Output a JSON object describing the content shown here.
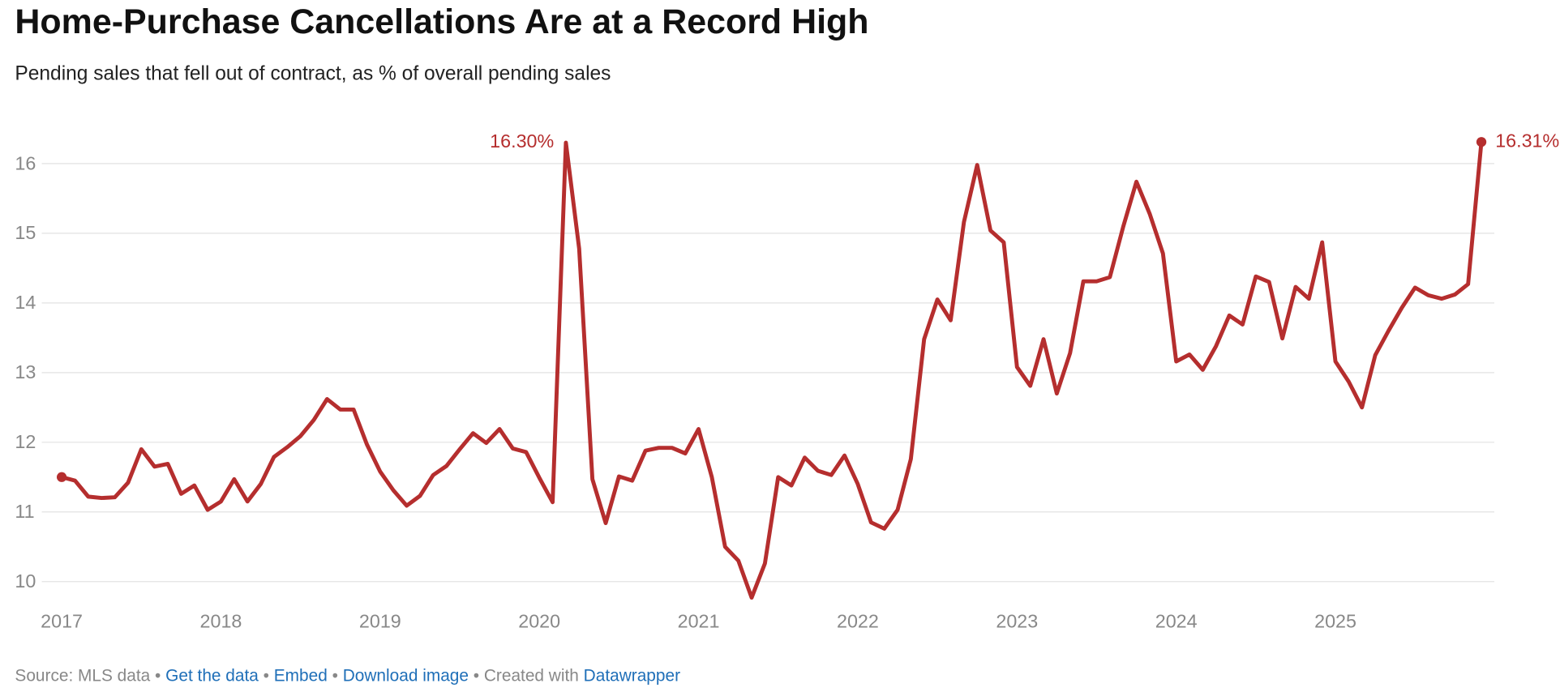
{
  "chart_data": {
    "type": "line",
    "title": "Home-Purchase Cancellations Are at a Record High",
    "subtitle": "Pending sales that fell out of contract, as % of overall pending sales",
    "x": [
      2017,
      2017.0833,
      2017.1667,
      2017.25,
      2017.3333,
      2017.4167,
      2017.5,
      2017.5833,
      2017.6667,
      2017.75,
      2017.8333,
      2017.9167,
      2018,
      2018.0833,
      2018.1667,
      2018.25,
      2018.3333,
      2018.4167,
      2018.5,
      2018.5833,
      2018.6667,
      2018.75,
      2018.8333,
      2018.9167,
      2019,
      2019.0833,
      2019.1667,
      2019.25,
      2019.3333,
      2019.4167,
      2019.5,
      2019.5833,
      2019.6667,
      2019.75,
      2019.8333,
      2019.9167,
      2020,
      2020.0833,
      2020.1667,
      2020.25,
      2020.3333,
      2020.4167,
      2020.5,
      2020.5833,
      2020.6667,
      2020.75,
      2020.8333,
      2020.9167,
      2021,
      2021.0833,
      2021.1667,
      2021.25,
      2021.3333,
      2021.4167,
      2021.5,
      2021.5833,
      2021.6667,
      2021.75,
      2021.8333,
      2021.9167,
      2022,
      2022.0833,
      2022.1667,
      2022.25,
      2022.3333,
      2022.4167,
      2022.5,
      2022.5833,
      2022.6667,
      2022.75,
      2022.8333,
      2022.9167,
      2023,
      2023.0833,
      2023.1667,
      2023.25,
      2023.3333,
      2023.4167,
      2023.5,
      2023.5833,
      2023.6667,
      2023.75,
      2023.8333,
      2023.9167,
      2024,
      2024.0833,
      2024.1667,
      2024.25,
      2024.3333,
      2024.4167,
      2024.5,
      2024.5833,
      2024.6667,
      2024.75,
      2024.8333,
      2024.9167,
      2025,
      2025.0833,
      2025.1667,
      2025.25,
      2025.3333,
      2025.4167,
      2025.5,
      2025.5833,
      2025.6667,
      2025.75,
      2025.8333,
      2025.9167
    ],
    "series": [
      {
        "color": "#b52e2e",
        "values": [
          11.5,
          11.45,
          11.22,
          11.2,
          11.21,
          11.42,
          11.9,
          11.65,
          11.69,
          11.26,
          11.38,
          11.03,
          11.15,
          11.47,
          11.15,
          11.4,
          11.79,
          11.93,
          12.09,
          12.32,
          12.62,
          12.47,
          12.47,
          11.97,
          11.58,
          11.31,
          11.09,
          11.23,
          11.53,
          11.66,
          11.9,
          12.13,
          11.99,
          12.19,
          11.91,
          11.86,
          11.49,
          11.14,
          16.3,
          14.78,
          11.47,
          10.84,
          11.51,
          11.45,
          11.88,
          11.92,
          11.92,
          11.84,
          12.19,
          11.5,
          10.5,
          10.3,
          9.77,
          10.26,
          11.5,
          11.38,
          11.78,
          11.59,
          11.53,
          11.81,
          11.4,
          10.85,
          10.76,
          11.03,
          11.76,
          13.48,
          14.05,
          13.75,
          15.16,
          15.98,
          15.04,
          14.87,
          13.08,
          12.81,
          13.48,
          12.7,
          13.28,
          14.31,
          14.31,
          14.37,
          15.09,
          15.74,
          15.28,
          14.71,
          13.16,
          13.26,
          13.04,
          13.38,
          13.82,
          13.69,
          14.38,
          14.3,
          13.49,
          14.23,
          14.06,
          14.87,
          13.16,
          12.87,
          12.5,
          13.25,
          13.6,
          13.93,
          14.22,
          14.11,
          14.06,
          14.12,
          14.27,
          16.31
        ],
        "value_labels": [
          null,
          null,
          null,
          null,
          null,
          null,
          null,
          null,
          null,
          null,
          null,
          null,
          null,
          null,
          null,
          null,
          null,
          null,
          null,
          null,
          null,
          null,
          null,
          null,
          null,
          null,
          null,
          null,
          null,
          null,
          null,
          null,
          null,
          null,
          null,
          null,
          null,
          null,
          "16.30%",
          null,
          null,
          null,
          null,
          null,
          null,
          null,
          null,
          null,
          null,
          null,
          null,
          null,
          null,
          null,
          null,
          null,
          null,
          null,
          null,
          null,
          null,
          null,
          null,
          null,
          null,
          null,
          null,
          null,
          null,
          null,
          null,
          null,
          null,
          null,
          null,
          null,
          null,
          null,
          null,
          null,
          null,
          null,
          null,
          null,
          null,
          null,
          null,
          null,
          null,
          null,
          null,
          null,
          null,
          null,
          null,
          null,
          null,
          null,
          null,
          null,
          null,
          null,
          null,
          null,
          null,
          null,
          null,
          "16.31%"
        ]
      }
    ],
    "xlim": [
      2017,
      2025.9167
    ],
    "xticks": [
      2017,
      2018,
      2019,
      2020,
      2021,
      2022,
      2023,
      2024,
      2025
    ],
    "ylim": [
      9.7,
      16.35
    ],
    "yticks": [
      10,
      11,
      12,
      13,
      14,
      15,
      16
    ],
    "grid": true
  },
  "footer": {
    "source": "Source: MLS data",
    "get_data": "Get the data",
    "embed": "Embed",
    "download": "Download image",
    "created": "Created with",
    "tool": "Datawrapper"
  }
}
